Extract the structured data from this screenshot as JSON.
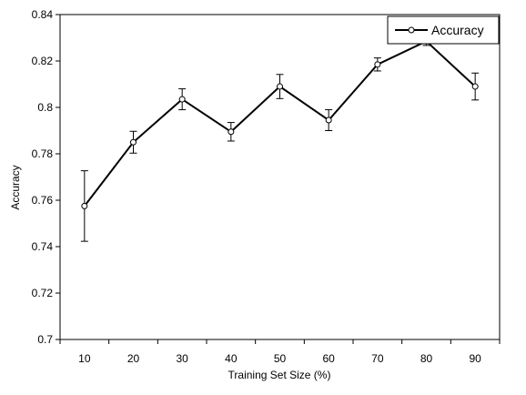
{
  "chart_data": {
    "type": "line",
    "title": "",
    "xlabel": "Training Set Size (%)",
    "ylabel": "Accuracy",
    "x": [
      10,
      20,
      30,
      40,
      50,
      60,
      70,
      80,
      90
    ],
    "x_tick_labels": [
      "10",
      "20",
      "30",
      "40",
      "50",
      "60",
      "70",
      "80",
      "90"
    ],
    "ylim": [
      0.7,
      0.84
    ],
    "y_ticks": [
      0.7,
      0.72,
      0.74,
      0.76,
      0.78,
      0.8,
      0.82,
      0.84
    ],
    "y_tick_labels": [
      "0.7",
      "0.72",
      "0.74",
      "0.76",
      "0.78",
      "0.8",
      "0.82",
      "0.84"
    ],
    "grid": false,
    "legend_position": "top-right",
    "series": [
      {
        "name": "Accuracy",
        "color": "#000000",
        "marker": "open-circle",
        "values": [
          0.7575,
          0.785,
          0.8035,
          0.7895,
          0.809,
          0.7945,
          0.8185,
          0.8285,
          0.809
        ],
        "error": [
          0.0152,
          0.0047,
          0.0045,
          0.004,
          0.0052,
          0.0045,
          0.0028,
          0.0018,
          0.0058
        ]
      }
    ]
  }
}
